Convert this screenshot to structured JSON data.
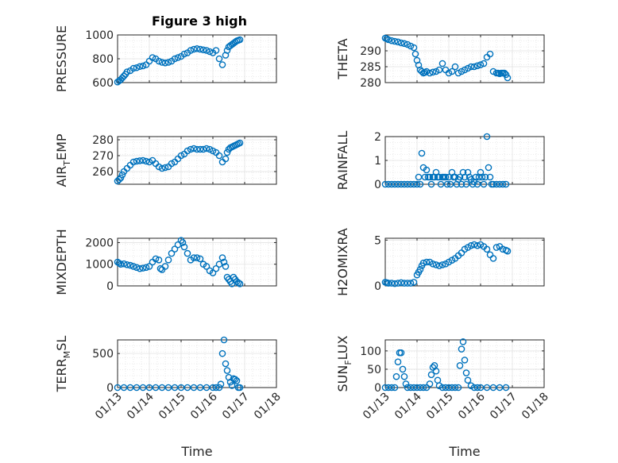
{
  "figure": {
    "title": "Figure 3 high",
    "marker_color": "#0072bd",
    "xtick_labels": [
      "01/13",
      "01/14",
      "01/15",
      "01/16",
      "01/17",
      "01/18"
    ]
  },
  "chart_data": [
    {
      "type": "scatter",
      "name": "PRESSURE",
      "ylabel": "PRESSURE",
      "xlabel": "",
      "title": "Figure 3 high",
      "xlim": [
        0,
        5
      ],
      "ylim": [
        600,
        1000
      ],
      "yticks": [
        600,
        800,
        1000
      ],
      "ytick_labels": [
        "600",
        "800",
        "1000"
      ],
      "xtick_labels_visible": false,
      "grid": "minor",
      "x": [
        0,
        0.05,
        0.1,
        0.15,
        0.2,
        0.25,
        0.3,
        0.4,
        0.5,
        0.6,
        0.7,
        0.8,
        0.9,
        1.0,
        1.1,
        1.2,
        1.3,
        1.4,
        1.5,
        1.6,
        1.7,
        1.8,
        1.9,
        2.0,
        2.1,
        2.2,
        2.3,
        2.4,
        2.5,
        2.6,
        2.7,
        2.8,
        2.9,
        3.0,
        3.1,
        3.2,
        3.3,
        3.4,
        3.45,
        3.5,
        3.55,
        3.6,
        3.65,
        3.7,
        3.75,
        3.8,
        3.85
      ],
      "y": [
        605,
        615,
        625,
        640,
        655,
        670,
        690,
        700,
        720,
        725,
        735,
        740,
        750,
        780,
        810,
        800,
        780,
        770,
        765,
        770,
        780,
        800,
        810,
        820,
        840,
        850,
        870,
        880,
        885,
        880,
        875,
        870,
        860,
        850,
        870,
        800,
        750,
        830,
        870,
        900,
        910,
        920,
        930,
        940,
        950,
        955,
        960
      ]
    },
    {
      "type": "scatter",
      "name": "THETA",
      "ylabel": "THETA",
      "xlabel": "",
      "xlim": [
        0,
        5
      ],
      "ylim": [
        280,
        295
      ],
      "yticks": [
        280,
        285,
        290
      ],
      "ytick_labels": [
        "280",
        "285",
        "290"
      ],
      "xtick_labels_visible": false,
      "grid": "minor",
      "x": [
        0,
        0.05,
        0.1,
        0.2,
        0.3,
        0.4,
        0.5,
        0.6,
        0.7,
        0.8,
        0.9,
        0.95,
        1.0,
        1.05,
        1.1,
        1.15,
        1.2,
        1.25,
        1.3,
        1.4,
        1.5,
        1.6,
        1.7,
        1.8,
        1.9,
        2.0,
        2.1,
        2.2,
        2.3,
        2.4,
        2.5,
        2.6,
        2.7,
        2.8,
        2.9,
        3.0,
        3.1,
        3.2,
        3.3,
        3.4,
        3.5,
        3.55,
        3.6,
        3.65,
        3.7,
        3.75,
        3.8,
        3.85
      ],
      "y": [
        294,
        293.8,
        293.5,
        293.2,
        293,
        292.8,
        292.5,
        292.3,
        292,
        291.5,
        291,
        289,
        287,
        285.5,
        284,
        283.5,
        283,
        283.2,
        283.5,
        283,
        283.3,
        283.5,
        284,
        286,
        284,
        283,
        283.5,
        285,
        283,
        283.5,
        284,
        284.5,
        285,
        285,
        285.3,
        285.6,
        286,
        288,
        289,
        283.5,
        283,
        283,
        282.8,
        283,
        283,
        283,
        282.5,
        281.5
      ]
    },
    {
      "type": "scatter",
      "name": "AIR_TEMP",
      "ylabel": "AIR_TEMP",
      "xlabel": "",
      "xlim": [
        0,
        5
      ],
      "ylim": [
        252,
        282
      ],
      "yticks": [
        260,
        270,
        280
      ],
      "ytick_labels": [
        "260",
        "270",
        "280"
      ],
      "xtick_labels_visible": false,
      "grid": "minor",
      "x": [
        0,
        0.05,
        0.1,
        0.15,
        0.2,
        0.3,
        0.4,
        0.5,
        0.6,
        0.7,
        0.8,
        0.9,
        1.0,
        1.1,
        1.2,
        1.3,
        1.4,
        1.5,
        1.6,
        1.7,
        1.8,
        1.9,
        2.0,
        2.1,
        2.2,
        2.3,
        2.4,
        2.5,
        2.6,
        2.7,
        2.8,
        2.9,
        3.0,
        3.1,
        3.2,
        3.3,
        3.4,
        3.45,
        3.5,
        3.55,
        3.6,
        3.65,
        3.7,
        3.75,
        3.8,
        3.85
      ],
      "y": [
        254,
        255,
        256,
        258,
        260,
        262,
        264,
        266,
        266.5,
        266.8,
        267,
        266.5,
        266,
        267,
        265,
        263,
        262,
        262.5,
        263,
        265,
        266,
        268,
        270,
        271,
        273,
        274,
        274.5,
        274,
        274,
        274,
        274.5,
        274,
        273,
        272,
        270,
        266,
        268,
        272,
        274,
        275,
        275.5,
        276,
        276.5,
        277,
        277.5,
        278
      ]
    },
    {
      "type": "scatter",
      "name": "RAINFALL",
      "ylabel": "RAINFALL",
      "xlabel": "",
      "xlim": [
        0,
        5
      ],
      "ylim": [
        0,
        2
      ],
      "yticks": [
        0,
        1,
        2
      ],
      "ytick_labels": [
        "0",
        "1",
        "2"
      ],
      "xtick_labels_visible": false,
      "grid": "minor",
      "x": [
        0,
        0.1,
        0.2,
        0.3,
        0.4,
        0.5,
        0.6,
        0.7,
        0.8,
        0.9,
        1.0,
        1.05,
        1.1,
        1.15,
        1.2,
        1.25,
        1.3,
        1.35,
        1.4,
        1.45,
        1.5,
        1.55,
        1.6,
        1.65,
        1.7,
        1.75,
        1.8,
        1.85,
        1.9,
        1.95,
        2.0,
        2.05,
        2.1,
        2.15,
        2.2,
        2.25,
        2.3,
        2.35,
        2.4,
        2.45,
        2.5,
        2.55,
        2.6,
        2.65,
        2.7,
        2.75,
        2.8,
        2.85,
        2.9,
        2.95,
        3.0,
        3.05,
        3.1,
        3.15,
        3.2,
        3.25,
        3.3,
        3.35,
        3.4,
        3.5,
        3.6,
        3.7,
        3.8
      ],
      "y": [
        0,
        0,
        0,
        0,
        0,
        0,
        0,
        0,
        0,
        0,
        0,
        0.3,
        0,
        1.3,
        0.7,
        0.3,
        0.6,
        0.3,
        0.3,
        0,
        0.3,
        0.3,
        0.5,
        0.3,
        0.3,
        0,
        0.3,
        0.3,
        0.3,
        0,
        0.3,
        0,
        0.5,
        0.3,
        0.3,
        0,
        0.2,
        0.3,
        0,
        0.5,
        0.3,
        0,
        0.5,
        0.3,
        0.2,
        0,
        0.1,
        0.3,
        0,
        0.3,
        0.5,
        0.3,
        0,
        0.3,
        2.0,
        0.7,
        0.3,
        0,
        0,
        0,
        0,
        0,
        0
      ]
    },
    {
      "type": "scatter",
      "name": "MIXDEPTH",
      "ylabel": "MIXDEPTH",
      "xlabel": "",
      "xlim": [
        0,
        5
      ],
      "ylim": [
        0,
        2200
      ],
      "yticks": [
        0,
        1000,
        2000
      ],
      "ytick_labels": [
        "0",
        "1000",
        "2000"
      ],
      "xtick_labels_visible": false,
      "grid": "minor",
      "x": [
        0,
        0.05,
        0.1,
        0.2,
        0.3,
        0.4,
        0.5,
        0.6,
        0.7,
        0.8,
        0.9,
        1.0,
        1.1,
        1.2,
        1.3,
        1.35,
        1.4,
        1.5,
        1.6,
        1.7,
        1.8,
        1.9,
        2.0,
        2.05,
        2.1,
        2.2,
        2.3,
        2.4,
        2.5,
        2.6,
        2.7,
        2.8,
        2.9,
        3.0,
        3.1,
        3.2,
        3.3,
        3.35,
        3.4,
        3.45,
        3.5,
        3.55,
        3.6,
        3.65,
        3.7,
        3.75,
        3.8,
        3.85
      ],
      "y": [
        1100,
        1050,
        1000,
        1020,
        980,
        950,
        900,
        850,
        800,
        820,
        850,
        900,
        1100,
        1250,
        1200,
        800,
        750,
        900,
        1200,
        1500,
        1700,
        1900,
        2100,
        2000,
        1800,
        1500,
        1200,
        1300,
        1300,
        1250,
        1000,
        900,
        700,
        600,
        800,
        1000,
        1300,
        1100,
        900,
        400,
        300,
        200,
        100,
        400,
        300,
        200,
        150,
        100
      ]
    },
    {
      "type": "scatter",
      "name": "H2OMIXRA",
      "ylabel": "H2OMIXRA",
      "xlabel": "",
      "xlim": [
        0,
        5
      ],
      "ylim": [
        0,
        5.2
      ],
      "yticks": [
        0,
        5
      ],
      "ytick_labels": [
        "0",
        "5"
      ],
      "xtick_labels_visible": false,
      "grid": "minor",
      "x": [
        0,
        0.05,
        0.1,
        0.2,
        0.3,
        0.4,
        0.5,
        0.6,
        0.7,
        0.8,
        0.9,
        1.0,
        1.05,
        1.1,
        1.15,
        1.2,
        1.3,
        1.4,
        1.5,
        1.6,
        1.7,
        1.8,
        1.9,
        2.0,
        2.1,
        2.2,
        2.3,
        2.4,
        2.5,
        2.6,
        2.7,
        2.8,
        2.9,
        3.0,
        3.1,
        3.2,
        3.3,
        3.4,
        3.5,
        3.6,
        3.7,
        3.8,
        3.85
      ],
      "y": [
        0.4,
        0.35,
        0.3,
        0.3,
        0.25,
        0.3,
        0.35,
        0.3,
        0.3,
        0.3,
        0.4,
        1.2,
        1.5,
        1.8,
        2.2,
        2.5,
        2.6,
        2.6,
        2.4,
        2.3,
        2.2,
        2.3,
        2.4,
        2.6,
        2.8,
        3.0,
        3.3,
        3.6,
        4.0,
        4.2,
        4.4,
        4.5,
        4.4,
        4.5,
        4.3,
        4.0,
        3.4,
        3.0,
        4.2,
        4.3,
        4.0,
        3.9,
        3.8
      ]
    },
    {
      "type": "scatter",
      "name": "TERR_MSL",
      "ylabel": "TERR_MSL",
      "xlabel": "Time",
      "xlim": [
        0,
        5
      ],
      "ylim": [
        0,
        700
      ],
      "yticks": [
        0,
        500
      ],
      "ytick_labels": [
        "0",
        "500"
      ],
      "xtick_labels_visible": true,
      "grid": "minor",
      "x": [
        0,
        0.2,
        0.4,
        0.6,
        0.8,
        1.0,
        1.2,
        1.4,
        1.6,
        1.8,
        2.0,
        2.2,
        2.4,
        2.6,
        2.8,
        3.0,
        3.1,
        3.2,
        3.25,
        3.3,
        3.35,
        3.4,
        3.45,
        3.5,
        3.55,
        3.6,
        3.65,
        3.7,
        3.75,
        3.8,
        3.85
      ],
      "y": [
        0,
        0,
        0,
        0,
        0,
        0,
        0,
        0,
        0,
        0,
        0,
        0,
        0,
        0,
        0,
        0,
        0,
        0,
        50,
        500,
        700,
        350,
        250,
        150,
        80,
        30,
        130,
        120,
        100,
        0,
        0
      ]
    },
    {
      "type": "scatter",
      "name": "SUN_FLUX",
      "ylabel": "SUN_FLUX",
      "xlabel": "Time",
      "xlim": [
        0,
        5
      ],
      "ylim": [
        0,
        130
      ],
      "yticks": [
        0,
        50,
        100
      ],
      "ytick_labels": [
        "0",
        "50",
        "100"
      ],
      "xtick_labels_visible": true,
      "grid": "minor",
      "x": [
        0,
        0.1,
        0.2,
        0.3,
        0.35,
        0.4,
        0.45,
        0.5,
        0.55,
        0.6,
        0.65,
        0.7,
        0.8,
        0.9,
        1.0,
        1.1,
        1.2,
        1.3,
        1.4,
        1.45,
        1.5,
        1.55,
        1.6,
        1.65,
        1.7,
        1.8,
        1.9,
        2.0,
        2.1,
        2.2,
        2.3,
        2.35,
        2.4,
        2.45,
        2.5,
        2.55,
        2.6,
        2.7,
        2.8,
        2.9,
        3.0,
        3.2,
        3.4,
        3.6,
        3.8
      ],
      "y": [
        0,
        0,
        0,
        0,
        30,
        70,
        95,
        95,
        50,
        30,
        10,
        0,
        0,
        0,
        0,
        0,
        0,
        0,
        10,
        35,
        55,
        60,
        45,
        20,
        5,
        0,
        0,
        0,
        0,
        0,
        0,
        60,
        105,
        125,
        75,
        40,
        20,
        5,
        0,
        0,
        0,
        0,
        0,
        0,
        0
      ]
    }
  ]
}
